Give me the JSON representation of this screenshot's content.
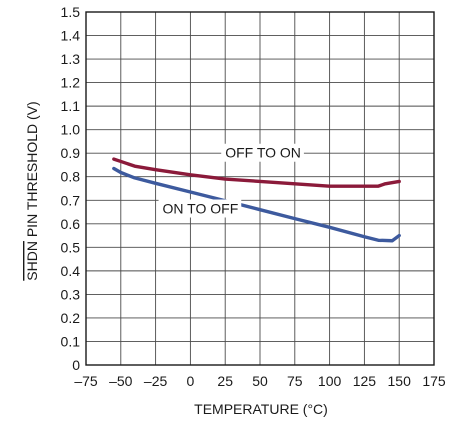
{
  "chart_data": {
    "type": "line",
    "xlabel": "TEMPERATURE (°C)",
    "ylabel_overline": "SHDN",
    "ylabel_rest": " PIN THRESHOLD (V)",
    "xlim": [
      -75,
      175
    ],
    "ylim": [
      0,
      1.5
    ],
    "xticks": [
      -75,
      -50,
      -25,
      0,
      25,
      50,
      75,
      100,
      125,
      150,
      175
    ],
    "xtick_labels": [
      "–75",
      "–50",
      "–25",
      "0",
      "25",
      "50",
      "75",
      "100",
      "125",
      "150",
      "175"
    ],
    "yticks": [
      0,
      0.1,
      0.2,
      0.3,
      0.4,
      0.5,
      0.6,
      0.7,
      0.8,
      0.9,
      1.0,
      1.1,
      1.2,
      1.3,
      1.4,
      1.5
    ],
    "ytick_labels": [
      "0",
      "0.1",
      "0.2",
      "0.3",
      "0.4",
      "0.5",
      "0.6",
      "0.7",
      "0.8",
      "0.9",
      "1.0",
      "1.1",
      "1.2",
      "1.3",
      "1.4",
      "1.5"
    ],
    "grid": true,
    "series": [
      {
        "key": "off-to-on",
        "annotation": "OFF TO ON",
        "color": "#8b1a3a",
        "x": [
          -55,
          -50,
          -40,
          -25,
          0,
          25,
          50,
          75,
          100,
          125,
          135,
          140,
          150
        ],
        "y": [
          0.875,
          0.865,
          0.845,
          0.83,
          0.808,
          0.79,
          0.78,
          0.77,
          0.76,
          0.76,
          0.76,
          0.77,
          0.78
        ]
      },
      {
        "key": "on-to-off",
        "annotation": "ON TO OFF",
        "color": "#3d5a9e",
        "x": [
          -55,
          -50,
          -40,
          -25,
          0,
          25,
          50,
          75,
          100,
          125,
          135,
          145,
          150
        ],
        "y": [
          0.835,
          0.818,
          0.795,
          0.772,
          0.735,
          0.698,
          0.66,
          0.622,
          0.585,
          0.545,
          0.53,
          0.528,
          0.55
        ]
      }
    ]
  }
}
